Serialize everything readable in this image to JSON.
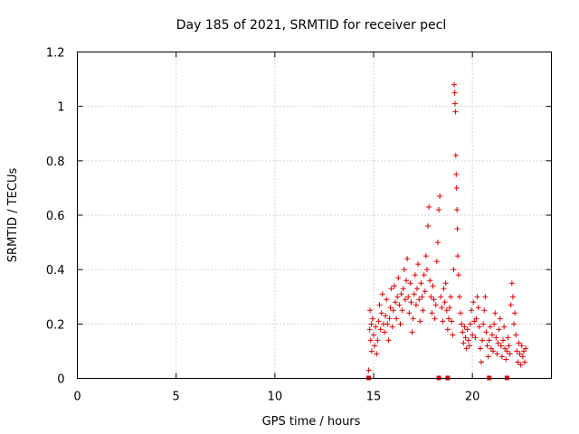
{
  "chart_data": {
    "type": "scatter",
    "title": "Day 185 of 2021, SRMTID for receiver pecl",
    "xlabel": "GPS time / hours",
    "ylabel": "SRMTID / TECUs",
    "xlim": [
      0,
      24
    ],
    "ylim": [
      0,
      1.2
    ],
    "xticks": [
      0,
      5,
      10,
      15,
      20
    ],
    "xtick_labels": [
      "0",
      "5",
      "10",
      "15",
      "20"
    ],
    "yticks": [
      0,
      0.2,
      0.4,
      0.6,
      0.8,
      1.0,
      1.2
    ],
    "ytick_labels": [
      "0",
      "0.2",
      "0.4",
      "0.6",
      "0.8",
      "1",
      "1.2"
    ],
    "grid": true,
    "marker": "+",
    "color": "#e00000",
    "series": [
      {
        "name": "SRMTID",
        "points": [
          [
            14.75,
            0.03
          ],
          [
            14.8,
            0.18
          ],
          [
            14.82,
            0.25
          ],
          [
            14.85,
            0.14
          ],
          [
            14.88,
            0.2
          ],
          [
            14.9,
            0.1
          ],
          [
            14.95,
            0.22
          ],
          [
            15.0,
            0.16
          ],
          [
            15.05,
            0.12
          ],
          [
            15.1,
            0.19
          ],
          [
            15.15,
            0.09
          ],
          [
            15.2,
            0.14
          ],
          [
            15.25,
            0.21
          ],
          [
            15.3,
            0.27
          ],
          [
            15.35,
            0.18
          ],
          [
            15.4,
            0.24
          ],
          [
            15.45,
            0.31
          ],
          [
            15.5,
            0.2
          ],
          [
            15.55,
            0.17
          ],
          [
            15.6,
            0.23
          ],
          [
            15.65,
            0.29
          ],
          [
            15.7,
            0.2
          ],
          [
            15.75,
            0.14
          ],
          [
            15.8,
            0.22
          ],
          [
            15.85,
            0.26
          ],
          [
            15.9,
            0.33
          ],
          [
            15.95,
            0.19
          ],
          [
            16.0,
            0.25
          ],
          [
            16.05,
            0.34
          ],
          [
            16.1,
            0.28
          ],
          [
            16.15,
            0.22
          ],
          [
            16.2,
            0.3
          ],
          [
            16.25,
            0.37
          ],
          [
            16.3,
            0.27
          ],
          [
            16.35,
            0.2
          ],
          [
            16.4,
            0.31
          ],
          [
            16.45,
            0.25
          ],
          [
            16.5,
            0.33
          ],
          [
            16.55,
            0.4
          ],
          [
            16.6,
            0.29
          ],
          [
            16.65,
            0.36
          ],
          [
            16.7,
            0.44
          ],
          [
            16.75,
            0.3
          ],
          [
            16.8,
            0.24
          ],
          [
            16.85,
            0.35
          ],
          [
            16.9,
            0.28
          ],
          [
            16.95,
            0.17
          ],
          [
            17.0,
            0.22
          ],
          [
            17.05,
            0.31
          ],
          [
            17.1,
            0.38
          ],
          [
            17.15,
            0.27
          ],
          [
            17.2,
            0.33
          ],
          [
            17.25,
            0.42
          ],
          [
            17.3,
            0.29
          ],
          [
            17.35,
            0.21
          ],
          [
            17.4,
            0.35
          ],
          [
            17.45,
            0.3
          ],
          [
            17.5,
            0.25
          ],
          [
            17.55,
            0.38
          ],
          [
            17.6,
            0.32
          ],
          [
            17.65,
            0.45
          ],
          [
            17.7,
            0.4
          ],
          [
            17.75,
            0.56
          ],
          [
            17.8,
            0.63
          ],
          [
            17.85,
            0.36
          ],
          [
            17.9,
            0.3
          ],
          [
            17.95,
            0.24
          ],
          [
            18.0,
            0.34
          ],
          [
            18.05,
            0.29
          ],
          [
            18.1,
            0.22
          ],
          [
            18.15,
            0.27
          ],
          [
            18.2,
            0.43
          ],
          [
            18.25,
            0.5
          ],
          [
            18.3,
            0.62
          ],
          [
            18.35,
            0.67
          ],
          [
            18.4,
            0.3
          ],
          [
            18.45,
            0.26
          ],
          [
            18.5,
            0.21
          ],
          [
            18.55,
            0.33
          ],
          [
            18.6,
            0.28
          ],
          [
            18.65,
            0.35
          ],
          [
            18.7,
            0.25
          ],
          [
            18.75,
            0.18
          ],
          [
            18.8,
            0.22
          ],
          [
            18.85,
            0.26
          ],
          [
            18.9,
            0.3
          ],
          [
            18.95,
            0.21
          ],
          [
            19.0,
            0.16
          ],
          [
            19.05,
            0.4
          ],
          [
            19.08,
            1.08
          ],
          [
            19.1,
            1.05
          ],
          [
            19.12,
            1.01
          ],
          [
            19.14,
            0.98
          ],
          [
            19.16,
            0.82
          ],
          [
            19.18,
            0.75
          ],
          [
            19.2,
            0.7
          ],
          [
            19.22,
            0.62
          ],
          [
            19.24,
            0.55
          ],
          [
            19.26,
            0.45
          ],
          [
            19.3,
            0.38
          ],
          [
            19.35,
            0.3
          ],
          [
            19.4,
            0.24
          ],
          [
            19.45,
            0.2
          ],
          [
            19.5,
            0.17
          ],
          [
            19.55,
            0.13
          ],
          [
            19.6,
            0.19
          ],
          [
            19.65,
            0.15
          ],
          [
            19.7,
            0.11
          ],
          [
            19.75,
            0.18
          ],
          [
            19.8,
            0.14
          ],
          [
            19.85,
            0.12
          ],
          [
            19.9,
            0.2
          ],
          [
            19.95,
            0.25
          ],
          [
            20.0,
            0.16
          ],
          [
            20.05,
            0.28
          ],
          [
            20.1,
            0.21
          ],
          [
            20.15,
            0.15
          ],
          [
            20.2,
            0.22
          ],
          [
            20.25,
            0.3
          ],
          [
            20.3,
            0.26
          ],
          [
            20.35,
            0.19
          ],
          [
            20.4,
            0.11
          ],
          [
            20.45,
            0.06
          ],
          [
            20.5,
            0.14
          ],
          [
            20.55,
            0.2
          ],
          [
            20.6,
            0.25
          ],
          [
            20.65,
            0.3
          ],
          [
            20.7,
            0.17
          ],
          [
            20.75,
            0.12
          ],
          [
            20.8,
            0.08
          ],
          [
            20.85,
            0.14
          ],
          [
            20.9,
            0.19
          ],
          [
            20.95,
            0.11
          ],
          [
            21.0,
            0.16
          ],
          [
            21.05,
            0.1
          ],
          [
            21.1,
            0.2
          ],
          [
            21.15,
            0.24
          ],
          [
            21.2,
            0.15
          ],
          [
            21.25,
            0.09
          ],
          [
            21.3,
            0.13
          ],
          [
            21.35,
            0.18
          ],
          [
            21.4,
            0.22
          ],
          [
            21.45,
            0.12
          ],
          [
            21.5,
            0.08
          ],
          [
            21.55,
            0.14
          ],
          [
            21.6,
            0.19
          ],
          [
            21.65,
            0.11
          ],
          [
            21.7,
            0.07
          ],
          [
            21.75,
            0.1
          ],
          [
            21.8,
            0.15
          ],
          [
            21.85,
            0.12
          ],
          [
            21.9,
            0.09
          ],
          [
            21.95,
            0.27
          ],
          [
            22.0,
            0.35
          ],
          [
            22.05,
            0.3
          ],
          [
            22.1,
            0.2
          ],
          [
            22.15,
            0.24
          ],
          [
            22.2,
            0.16
          ],
          [
            22.25,
            0.1
          ],
          [
            22.3,
            0.06
          ],
          [
            22.35,
            0.13
          ],
          [
            22.4,
            0.09
          ],
          [
            22.45,
            0.05
          ],
          [
            22.5,
            0.12
          ],
          [
            22.55,
            0.08
          ],
          [
            22.6,
            0.1
          ],
          [
            22.65,
            0.06
          ],
          [
            22.7,
            0.11
          ]
        ]
      }
    ],
    "gap_markers_x": [
      14.75,
      18.3,
      18.75,
      20.85,
      21.75
    ]
  }
}
